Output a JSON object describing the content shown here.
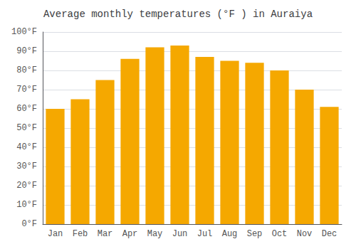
{
  "chart_data": {
    "type": "bar",
    "title": "Average monthly temperatures (°F ) in Auraiya",
    "categories": [
      "Jan",
      "Feb",
      "Mar",
      "Apr",
      "May",
      "Jun",
      "Jul",
      "Aug",
      "Sep",
      "Oct",
      "Nov",
      "Dec"
    ],
    "values": [
      60,
      65,
      75,
      86,
      92,
      93,
      87,
      85,
      84,
      80,
      70,
      61
    ],
    "color": "#F5A800",
    "ylim": [
      0,
      100
    ],
    "yticks": [
      {
        "value": 0,
        "label": "0°F"
      },
      {
        "value": 10,
        "label": "10°F"
      },
      {
        "value": 20,
        "label": "20°F"
      },
      {
        "value": 30,
        "label": "30°F"
      },
      {
        "value": 40,
        "label": "40°F"
      },
      {
        "value": 50,
        "label": "50°F"
      },
      {
        "value": 60,
        "label": "60°F"
      },
      {
        "value": 70,
        "label": "70°F"
      },
      {
        "value": 80,
        "label": "80°F"
      },
      {
        "value": 90,
        "label": "90°F"
      },
      {
        "value": 100,
        "label": "100°F"
      }
    ],
    "grid": true
  }
}
